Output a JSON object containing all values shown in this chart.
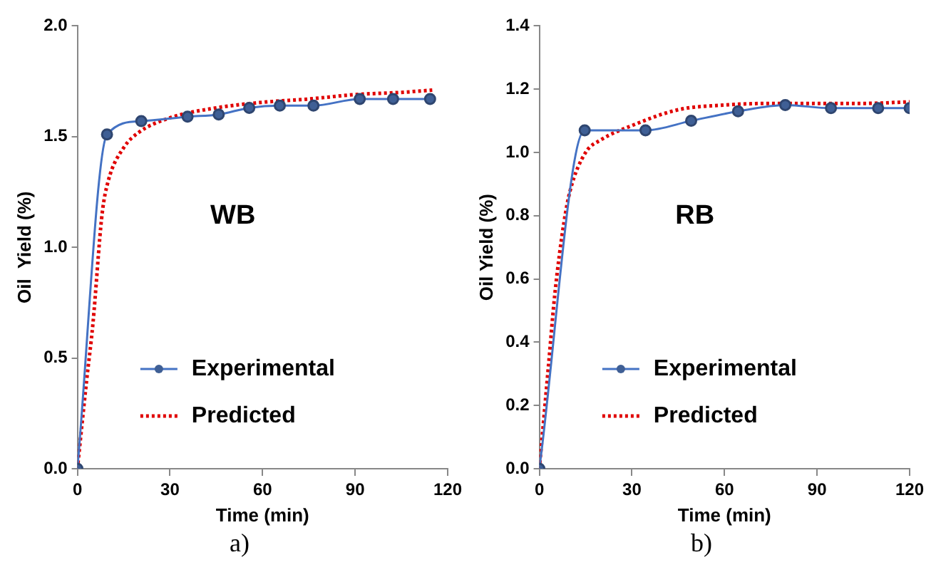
{
  "chart_data": [
    {
      "type": "line",
      "xlabel": "Time (min)",
      "ylabel": "Oil  Yield (%)",
      "xlim": [
        0,
        120
      ],
      "xticks": [
        0,
        30,
        60,
        90,
        120
      ],
      "ylim": [
        0,
        2.0
      ],
      "yticks": [
        {
          "value": 0,
          "label": "0.0"
        },
        {
          "value": 0.5,
          "label": "0.5"
        },
        {
          "value": 1.0,
          "label": "1.0"
        },
        {
          "value": 1.5,
          "label": "1.5"
        },
        {
          "value": 2.0,
          "label": "2.0"
        }
      ],
      "grid": false,
      "legend": "bottom",
      "annotations": [
        "WB",
        "a)"
      ],
      "series": [
        {
          "name": "Experimental",
          "color": "#4472c4",
          "marker": "circle",
          "line_style": "solid",
          "x": [
            0,
            9.6,
            20.7,
            35.7,
            45.8,
            55.7,
            65.6,
            76.5,
            91.5,
            102.3,
            114.3
          ],
          "values": [
            0,
            1.51,
            1.57,
            1.59,
            1.6,
            1.63,
            1.64,
            1.64,
            1.67,
            1.67,
            1.67
          ]
        },
        {
          "name": "Predicted",
          "color": "#e00000",
          "marker": "none",
          "line_style": "dotted",
          "x": [
            0,
            3,
            5,
            8,
            10,
            15,
            20,
            30,
            45,
            60,
            75,
            90,
            105,
            115
          ],
          "values": [
            0,
            0.4,
            0.65,
            1.15,
            1.3,
            1.45,
            1.52,
            1.585,
            1.63,
            1.655,
            1.67,
            1.69,
            1.7,
            1.71
          ]
        }
      ]
    },
    {
      "type": "line",
      "xlabel": "Time (min)",
      "ylabel": "Oil Yield (%)",
      "xlim": [
        0,
        120
      ],
      "xticks": [
        0,
        30,
        60,
        90,
        120
      ],
      "ylim": [
        0,
        1.4
      ],
      "yticks": [
        {
          "value": 0,
          "label": "0.0"
        },
        0.2,
        0.4,
        0.6,
        0.8,
        {
          "value": 1.0,
          "label": "1.0"
        },
        1.2,
        1.4
      ],
      "grid": false,
      "legend": "bottom",
      "annotations": [
        "RB",
        "b)"
      ],
      "series": [
        {
          "name": "Experimental",
          "color": "#4472c4",
          "marker": "circle",
          "line_style": "solid",
          "x": [
            0,
            14.7,
            34.4,
            49.2,
            64.4,
            79.7,
            94.5,
            109.8,
            120
          ],
          "values": [
            0,
            1.07,
            1.07,
            1.1,
            1.13,
            1.15,
            1.14,
            1.14,
            1.14
          ]
        },
        {
          "name": "Predicted",
          "color": "#e00000",
          "marker": "none",
          "line_style": "dotted",
          "x": [
            0,
            3,
            5,
            8,
            10,
            15,
            20,
            30,
            45,
            60,
            75,
            90,
            105,
            120
          ],
          "values": [
            0,
            0.33,
            0.55,
            0.78,
            0.88,
            1.0,
            1.04,
            1.085,
            1.135,
            1.15,
            1.155,
            1.155,
            1.155,
            1.16
          ]
        }
      ]
    }
  ]
}
